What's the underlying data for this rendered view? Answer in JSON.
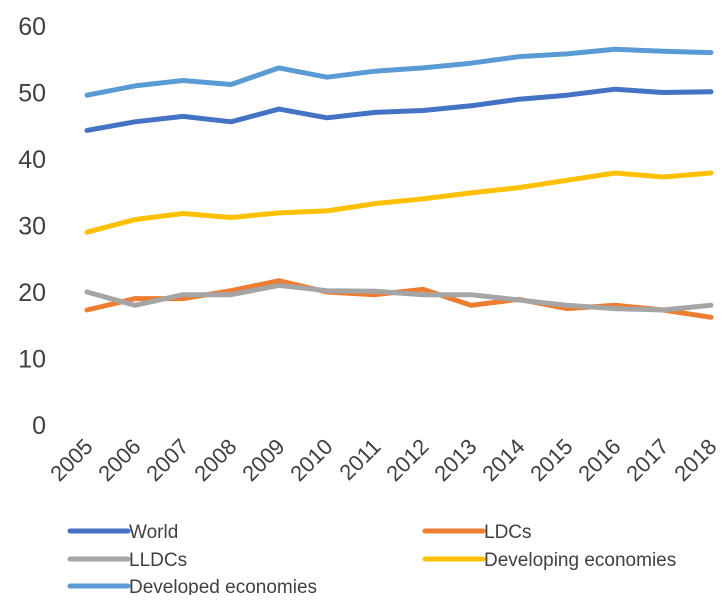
{
  "chart_data": {
    "type": "line",
    "title": "",
    "xlabel": "",
    "ylabel": "",
    "categories": [
      "2005",
      "2006",
      "2007",
      "2008",
      "2009",
      "2010",
      "2011",
      "2012",
      "2013",
      "2014",
      "2015",
      "2016",
      "2017",
      "2018"
    ],
    "ylim": [
      0,
      60
    ],
    "yticks": [
      "0",
      "10",
      "20",
      "30",
      "40",
      "50",
      "60"
    ],
    "grid": false,
    "legend_position": "bottom",
    "series": [
      {
        "name": "World",
        "color": "#4472C4",
        "values": [
          44.3,
          45.6,
          46.4,
          45.6,
          47.5,
          46.2,
          47.0,
          47.3,
          48.0,
          49.0,
          49.6,
          50.5,
          50.0,
          50.1
        ]
      },
      {
        "name": "LDCs",
        "color": "#ED7D31",
        "values": [
          17.3,
          19.0,
          19.0,
          20.2,
          21.7,
          20.0,
          19.6,
          20.4,
          18.0,
          18.9,
          17.5,
          18.0,
          17.3,
          16.2
        ]
      },
      {
        "name": "LLDCs",
        "color": "#A5A5A5",
        "values": [
          20.0,
          18.0,
          19.6,
          19.6,
          21.0,
          20.2,
          20.1,
          19.6,
          19.6,
          18.8,
          18.0,
          17.5,
          17.3,
          18.0
        ]
      },
      {
        "name": "Developing economies",
        "color": "#FFC000",
        "values": [
          29.0,
          30.9,
          31.8,
          31.2,
          31.9,
          32.2,
          33.3,
          34.0,
          34.9,
          35.7,
          36.8,
          37.9,
          37.3,
          37.9
        ]
      },
      {
        "name": "Developed economies",
        "color": "#5B9BD5",
        "values": [
          49.6,
          51.0,
          51.8,
          51.2,
          53.7,
          52.3,
          53.2,
          53.7,
          54.4,
          55.4,
          55.8,
          56.5,
          56.2,
          56.0
        ]
      }
    ]
  }
}
